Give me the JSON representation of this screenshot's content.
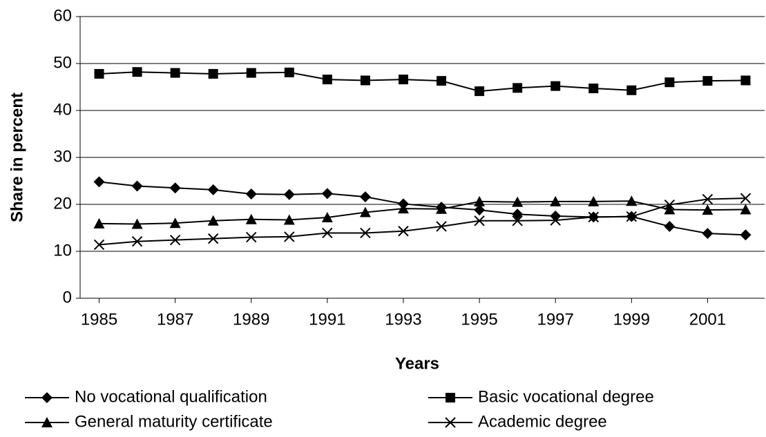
{
  "chart_data": {
    "type": "line",
    "x_label": "Years",
    "y_label": "Share in percent",
    "x": [
      1985,
      1986,
      1987,
      1988,
      1989,
      1990,
      1991,
      1992,
      1993,
      1994,
      1995,
      1996,
      1997,
      1998,
      1999,
      2000,
      2001,
      2002
    ],
    "xlim": [
      1984.5,
      2002.5
    ],
    "xticks": [
      1985,
      1987,
      1989,
      1991,
      1993,
      1995,
      1997,
      1999,
      2001
    ],
    "ylim": [
      0,
      60
    ],
    "yticks": [
      0,
      10,
      20,
      30,
      40,
      50,
      60
    ],
    "grid": true,
    "series": [
      {
        "name": "No vocational qualification",
        "color": "#000000",
        "marker": "diamond",
        "values": [
          24.8,
          23.9,
          23.5,
          23.1,
          22.2,
          22.1,
          22.3,
          21.6,
          20.1,
          19.4,
          18.8,
          17.9,
          17.5,
          17.3,
          17.4,
          15.3,
          13.8,
          13.5
        ]
      },
      {
        "name": "Basic vocational degree",
        "color": "#000000",
        "marker": "square",
        "values": [
          47.8,
          48.2,
          48.0,
          47.8,
          48.0,
          48.1,
          46.6,
          46.4,
          46.6,
          46.3,
          44.1,
          44.8,
          45.2,
          44.7,
          44.3,
          46.0,
          46.3,
          46.4
        ]
      },
      {
        "name": "General maturity certificate",
        "color": "#000000",
        "marker": "triangle",
        "values": [
          15.9,
          15.8,
          16.0,
          16.5,
          16.8,
          16.7,
          17.2,
          18.3,
          19.1,
          19.0,
          20.6,
          20.5,
          20.6,
          20.6,
          20.7,
          18.9,
          18.8,
          18.9
        ]
      },
      {
        "name": "Academic degree",
        "color": "#000000",
        "marker": "x",
        "values": [
          11.4,
          12.1,
          12.4,
          12.7,
          13.0,
          13.1,
          13.9,
          13.9,
          14.3,
          15.3,
          16.5,
          16.5,
          16.6,
          17.3,
          17.4,
          19.9,
          21.1,
          21.3
        ]
      }
    ]
  }
}
